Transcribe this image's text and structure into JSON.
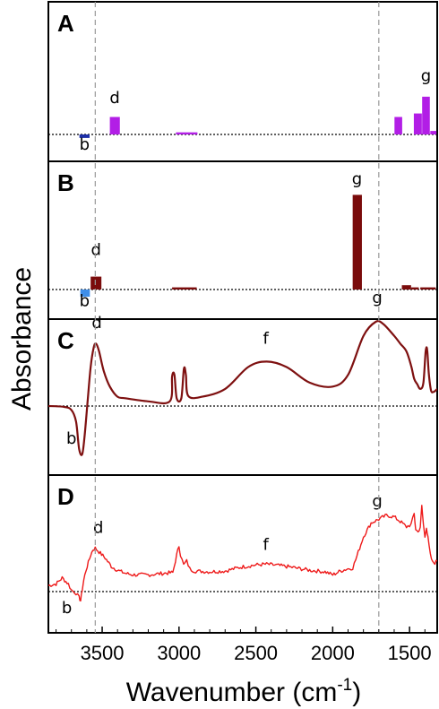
{
  "chart_data": {
    "type": "bar",
    "xlabel": "Wavenumber (cm",
    "xlabel_sup": "-1",
    "xlabel_close": ")",
    "ylabel": "Absorbance",
    "xlim": [
      3850,
      1320
    ],
    "x_ticks": [
      3500,
      3000,
      2500,
      2000,
      1500
    ],
    "x_tick_labels": [
      "3500",
      "3000",
      "2500",
      "2000",
      "1500"
    ],
    "guide_lines": [
      3545,
      1700
    ],
    "colors": {
      "A_pos": "#b21ee6",
      "A_neg": "#1c2fa8",
      "B_pos": "#7a0b0b",
      "B_neg": "#3f8ee8",
      "C_line": "#7e1010",
      "D_line": "#ee1a1a",
      "guide": "#999999"
    },
    "panels": [
      {
        "label": "A",
        "kind": "bars",
        "bars": [
          {
            "x0": 3648,
            "x1": 3582,
            "y": -0.05
          },
          {
            "x0": 3450,
            "x1": 3385,
            "y": 0.25
          },
          {
            "x0": 3020,
            "x1": 2880,
            "y": 0.03
          },
          {
            "x0": 1598,
            "x1": 1548,
            "y": 0.25
          },
          {
            "x0": 1472,
            "x1": 1420,
            "y": 0.3
          },
          {
            "x0": 1418,
            "x1": 1368,
            "y": 0.54
          },
          {
            "x0": 1365,
            "x1": 1325,
            "y": 0.05
          }
        ],
        "peak_labels": [
          {
            "text": "b",
            "x": 3615,
            "y": -0.22
          },
          {
            "text": "d",
            "x": 3418,
            "y": 0.45
          },
          {
            "text": "g",
            "x": 1393,
            "y": 0.76
          }
        ]
      },
      {
        "label": "B",
        "kind": "bars",
        "bars": [
          {
            "x0": 3642,
            "x1": 3580,
            "y": -0.1
          },
          {
            "x0": 3575,
            "x1": 3505,
            "y": 0.18
          },
          {
            "x0": 3045,
            "x1": 2885,
            "y": 0.03
          },
          {
            "x0": 1870,
            "x1": 1810,
            "y": 1.32
          },
          {
            "x0": 1550,
            "x1": 1490,
            "y": 0.06
          },
          {
            "x0": 1490,
            "x1": 1440,
            "y": 0.03
          },
          {
            "x0": 1430,
            "x1": 1330,
            "y": 0.03
          }
        ],
        "peak_labels": [
          {
            "text": "b",
            "x": 3615,
            "y": -0.23
          },
          {
            "text": "d",
            "x": 3540,
            "y": 0.48
          },
          {
            "text": "g",
            "x": 1842,
            "y": 1.47
          }
        ]
      },
      {
        "label": "C",
        "kind": "line",
        "points": [
          [
            3850,
            0.0
          ],
          [
            3750,
            -0.01
          ],
          [
            3700,
            -0.05
          ],
          [
            3670,
            -0.2
          ],
          [
            3650,
            -0.55
          ],
          [
            3630,
            -0.62
          ],
          [
            3615,
            -0.4
          ],
          [
            3595,
            0.05
          ],
          [
            3575,
            0.5
          ],
          [
            3555,
            0.75
          ],
          [
            3540,
            0.8
          ],
          [
            3520,
            0.7
          ],
          [
            3490,
            0.45
          ],
          [
            3450,
            0.25
          ],
          [
            3400,
            0.12
          ],
          [
            3350,
            0.1
          ],
          [
            3200,
            0.06
          ],
          [
            3060,
            0.06
          ],
          [
            3045,
            0.38
          ],
          [
            3030,
            0.4
          ],
          [
            3015,
            0.1
          ],
          [
            2985,
            0.1
          ],
          [
            2968,
            0.48
          ],
          [
            2955,
            0.4
          ],
          [
            2940,
            0.13
          ],
          [
            2850,
            0.12
          ],
          [
            2700,
            0.22
          ],
          [
            2550,
            0.5
          ],
          [
            2430,
            0.57
          ],
          [
            2300,
            0.5
          ],
          [
            2150,
            0.3
          ],
          [
            2000,
            0.25
          ],
          [
            1900,
            0.4
          ],
          [
            1800,
            0.9
          ],
          [
            1720,
            1.08
          ],
          [
            1670,
            1.05
          ],
          [
            1600,
            0.9
          ],
          [
            1560,
            0.8
          ],
          [
            1520,
            0.7
          ],
          [
            1490,
            0.52
          ],
          [
            1470,
            0.35
          ],
          [
            1450,
            0.28
          ],
          [
            1430,
            0.22
          ],
          [
            1410,
            0.3
          ],
          [
            1395,
            0.7
          ],
          [
            1385,
            0.72
          ],
          [
            1375,
            0.42
          ],
          [
            1360,
            0.2
          ],
          [
            1345,
            0.18
          ],
          [
            1330,
            0.2
          ],
          [
            1320,
            0.22
          ]
        ],
        "peak_labels": [
          {
            "text": "b",
            "x": 3700,
            "y": -0.48
          },
          {
            "text": "d",
            "x": 3535,
            "y": 1.0
          },
          {
            "text": "f",
            "x": 2435,
            "y": 0.8
          },
          {
            "text": "g",
            "x": 1710,
            "y": 1.32
          }
        ]
      },
      {
        "label": "D",
        "kind": "line",
        "points": [
          [
            3850,
            0.08
          ],
          [
            3800,
            0.1
          ],
          [
            3760,
            0.18
          ],
          [
            3720,
            0.1
          ],
          [
            3700,
            0.02
          ],
          [
            3670,
            -0.02
          ],
          [
            3650,
            -0.08
          ],
          [
            3640,
            -0.12
          ],
          [
            3630,
            0.02
          ],
          [
            3620,
            0.15
          ],
          [
            3605,
            0.28
          ],
          [
            3590,
            0.38
          ],
          [
            3575,
            0.48
          ],
          [
            3560,
            0.55
          ],
          [
            3545,
            0.57
          ],
          [
            3520,
            0.52
          ],
          [
            3480,
            0.44
          ],
          [
            3440,
            0.33
          ],
          [
            3400,
            0.28
          ],
          [
            3350,
            0.24
          ],
          [
            3300,
            0.22
          ],
          [
            3200,
            0.22
          ],
          [
            3100,
            0.24
          ],
          [
            3040,
            0.25
          ],
          [
            3015,
            0.48
          ],
          [
            3000,
            0.6
          ],
          [
            2990,
            0.48
          ],
          [
            2970,
            0.35
          ],
          [
            2950,
            0.4
          ],
          [
            2930,
            0.3
          ],
          [
            2900,
            0.27
          ],
          [
            2800,
            0.26
          ],
          [
            2700,
            0.27
          ],
          [
            2600,
            0.32
          ],
          [
            2500,
            0.35
          ],
          [
            2430,
            0.36
          ],
          [
            2300,
            0.33
          ],
          [
            2150,
            0.28
          ],
          [
            2050,
            0.26
          ],
          [
            2000,
            0.22
          ],
          [
            1950,
            0.27
          ],
          [
            1900,
            0.3
          ],
          [
            1870,
            0.31
          ],
          [
            1850,
            0.42
          ],
          [
            1800,
            0.72
          ],
          [
            1750,
            0.9
          ],
          [
            1700,
            0.95
          ],
          [
            1650,
            1.0
          ],
          [
            1600,
            0.98
          ],
          [
            1560,
            0.92
          ],
          [
            1520,
            0.85
          ],
          [
            1490,
            0.88
          ],
          [
            1470,
            1.02
          ],
          [
            1460,
            0.82
          ],
          [
            1445,
            0.78
          ],
          [
            1430,
            0.85
          ],
          [
            1420,
            1.12
          ],
          [
            1410,
            0.88
          ],
          [
            1400,
            0.72
          ],
          [
            1390,
            0.85
          ],
          [
            1380,
            0.7
          ],
          [
            1365,
            0.48
          ],
          [
            1350,
            0.38
          ],
          [
            1335,
            0.38
          ],
          [
            1320,
            0.4
          ]
        ],
        "noise_amplitude": 0.025,
        "peak_labels": [
          {
            "text": "b",
            "x": 3730,
            "y": -0.28
          },
          {
            "text": "d",
            "x": 3525,
            "y": 0.77
          },
          {
            "text": "f",
            "x": 2435,
            "y": 0.55
          },
          {
            "text": "g",
            "x": 1710,
            "y": 1.12
          }
        ]
      }
    ]
  }
}
